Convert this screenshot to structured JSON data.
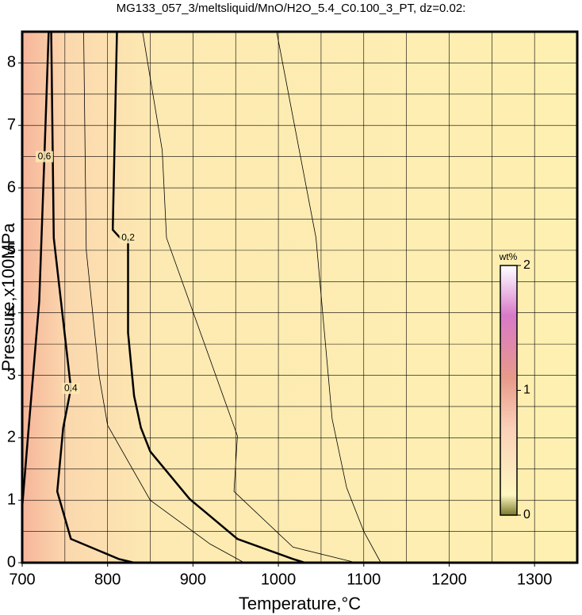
{
  "chart_data": {
    "type": "contour",
    "title": "MG133_057_3/meltsliquid/MnO/H2O_5.4_C0.100_3_PT, dz=0.02:",
    "xlabel": "Temperature,°C",
    "ylabel": "Pressure,x100MPa",
    "xlim": [
      700,
      1350
    ],
    "ylim": [
      0,
      8.5
    ],
    "xticks": [
      700,
      800,
      900,
      1000,
      1100,
      1200,
      1300
    ],
    "yticks": [
      0,
      1,
      2,
      3,
      4,
      5,
      6,
      7,
      8
    ],
    "xgrid": [
      750,
      850,
      950,
      1050,
      1150,
      1250
    ],
    "ygrid": [
      0.5,
      1.5,
      2.5,
      3.5,
      4.5,
      5.5,
      6.5,
      7.5
    ],
    "grid": true,
    "contours": [
      {
        "level": 0.2,
        "x": [
          811,
          806,
          816,
          null,
          824,
          824,
          831,
          839,
          850,
          896,
          952,
          1017,
          1031
        ],
        "y": [
          8.5,
          5.33,
          5.18,
          null,
          5.2,
          3.68,
          2.67,
          2.16,
          1.78,
          1.02,
          0.38,
          0.06,
          0
        ]
      },
      {
        "level": 0.4,
        "x": [
          734,
          737,
          757,
          748,
          741,
          757,
          813,
          831
        ],
        "y": [
          8.5,
          5.2,
          2.79,
          2.16,
          1.14,
          0.38,
          0.06,
          0
        ]
      },
      {
        "level": 0.6,
        "x": [
          731,
          726,
          720,
          706,
          700
        ],
        "y": [
          8.5,
          6.5,
          4.19,
          1.9,
          0.89
        ]
      },
      {
        "level": 0.1,
        "x": [
          841,
          864,
          869,
          952,
          948,
          1017,
          1091
        ],
        "y": [
          8.5,
          6.6,
          5.2,
          2.03,
          1.14,
          0.25,
          0
        ]
      },
      {
        "level": 0.05,
        "x": [
          998,
          1044,
          1063,
          1080,
          1100,
          1120
        ],
        "y": [
          8.5,
          5.2,
          2.3,
          1.2,
          0.5,
          0
        ]
      },
      {
        "level": 0.3,
        "x": [
          772,
          775,
          790,
          800,
          850,
          920,
          960
        ],
        "y": [
          8.5,
          5.0,
          3.0,
          2.2,
          1.0,
          0.3,
          0
        ]
      }
    ],
    "colorbar": {
      "label": "wt%",
      "lim": [
        0,
        2
      ],
      "ticks": [
        0,
        1,
        2
      ]
    }
  }
}
